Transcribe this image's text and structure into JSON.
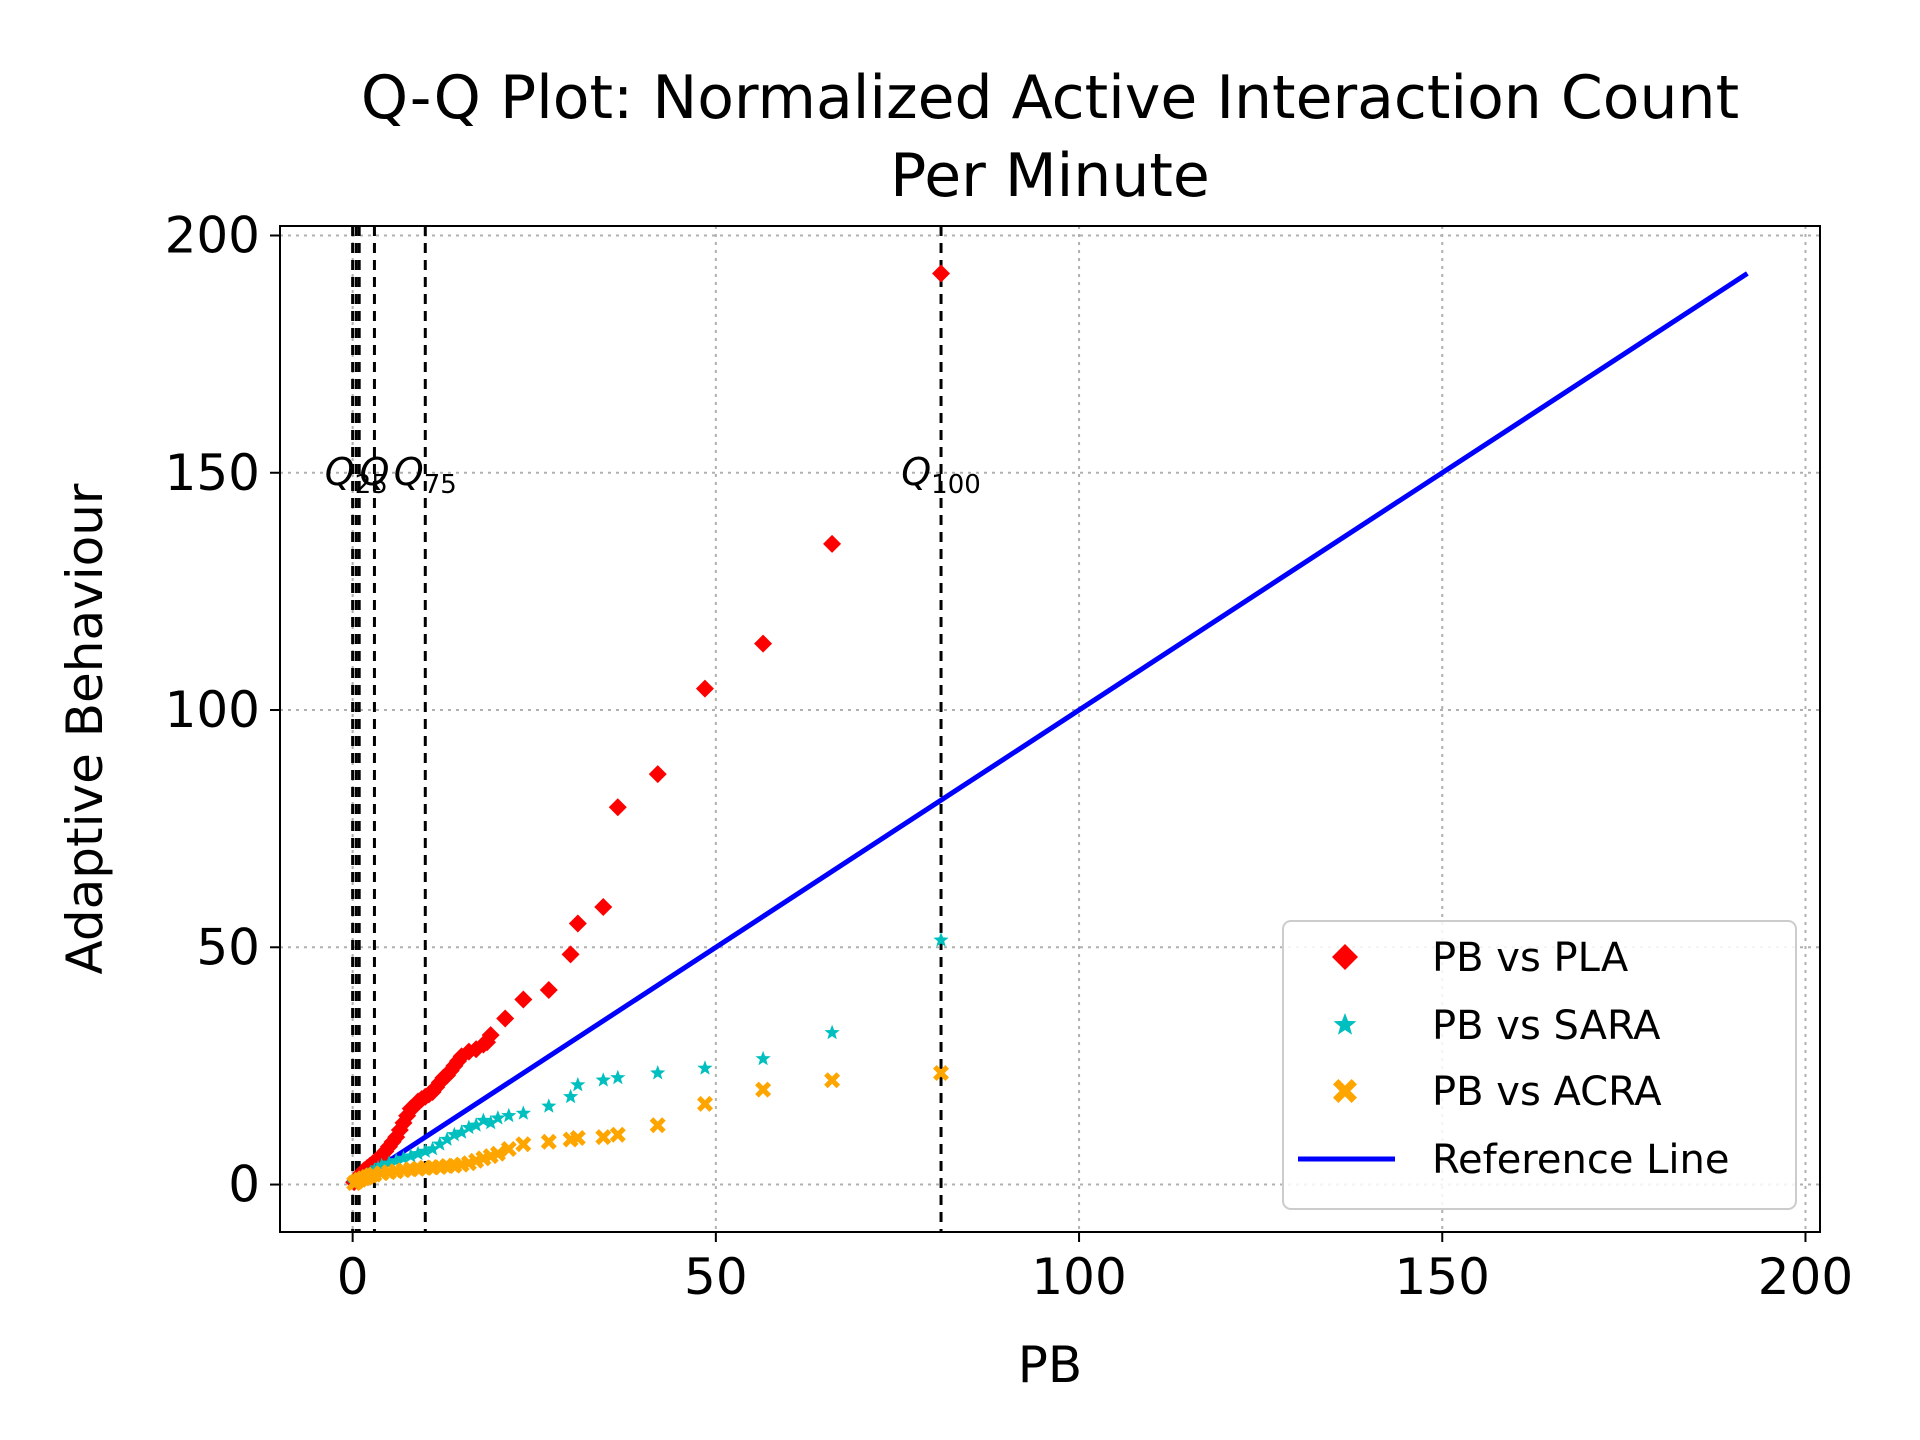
{
  "chart_data": {
    "type": "scatter",
    "title_line1": "Q-Q Plot: Normalized Active Interaction Count",
    "title_line2": "Per Minute",
    "xlabel": "PB",
    "ylabel": "Adaptive Behaviour",
    "xlim": [
      -10,
      202
    ],
    "ylim": [
      -10,
      202
    ],
    "xticks": [
      0,
      50,
      100,
      150,
      200
    ],
    "yticks": [
      0,
      50,
      100,
      150,
      200
    ],
    "xtick_labels": [
      "0",
      "50",
      "100",
      "150",
      "200"
    ],
    "ytick_labels": [
      "0",
      "50",
      "100",
      "150",
      "200"
    ],
    "grid": true,
    "legend_position": "lower-right",
    "quantile_lines": [
      {
        "name": "Q25",
        "x": 0.5,
        "label_base": "Q",
        "label_sub": "25",
        "show_label": true,
        "label_color": "#bbbbbb"
      },
      {
        "name": "Q0",
        "x": 0.0,
        "show_label": false
      },
      {
        "name": "Q40",
        "x": 0.9,
        "show_label": false
      },
      {
        "name": "Q50",
        "x": 3.0,
        "label_base": "Q",
        "label_sub": "",
        "show_label": true,
        "label_color": "#000000"
      },
      {
        "name": "Q75",
        "x": 10.0,
        "label_base": "Q",
        "label_sub": "75",
        "show_label": true,
        "label_color": "#000000"
      },
      {
        "name": "Q100",
        "x": 81.0,
        "label_base": "Q",
        "label_sub": "100",
        "show_label": true,
        "label_color": "#000000"
      }
    ],
    "quantile_label_y": 150,
    "series": [
      {
        "name": "PB vs PLA",
        "marker": "diamond",
        "color": "#ff0000",
        "x": [
          0.2,
          0.5,
          0.8,
          1.0,
          1.3,
          1.6,
          2.0,
          2.4,
          2.8,
          3.2,
          3.6,
          4.0,
          4.5,
          5.0,
          5.5,
          6.0,
          6.5,
          7.0,
          7.5,
          8.0,
          8.5,
          9.0,
          9.5,
          10.0,
          10.5,
          11.0,
          11.5,
          12.0,
          12.5,
          13.0,
          13.5,
          14.0,
          14.5,
          15.0,
          16.0,
          17.0,
          18.0,
          18.5,
          19.0,
          21.0,
          23.5,
          27.0,
          30.0,
          31.0,
          34.5,
          36.5,
          42.0,
          48.5,
          56.5,
          66.0,
          81.0
        ],
        "y": [
          0.5,
          1.0,
          1.5,
          2.0,
          2.5,
          3.0,
          3.5,
          4.0,
          4.5,
          5.0,
          5.5,
          6.0,
          7.0,
          8.0,
          9.0,
          10.0,
          11.5,
          13.0,
          14.5,
          16.0,
          16.5,
          17.5,
          18.0,
          18.5,
          19.0,
          19.5,
          20.5,
          21.5,
          22.5,
          23.0,
          24.0,
          25.0,
          26.0,
          27.0,
          28.0,
          28.5,
          29.5,
          30.0,
          31.5,
          35.0,
          39.0,
          41.0,
          48.5,
          55.0,
          58.5,
          79.5,
          86.5,
          104.5,
          114.0,
          135.0,
          192.0
        ]
      },
      {
        "name": "PB vs SARA",
        "marker": "star",
        "color": "#00bfbf",
        "x": [
          0.2,
          0.5,
          1.0,
          1.5,
          2.0,
          2.5,
          3.0,
          3.5,
          4.0,
          5.0,
          6.0,
          7.0,
          8.0,
          9.0,
          10.0,
          11.0,
          12.0,
          13.0,
          14.0,
          15.0,
          16.0,
          17.0,
          18.0,
          19.0,
          20.0,
          21.5,
          23.5,
          27.0,
          30.0,
          31.0,
          34.5,
          36.5,
          42.0,
          48.5,
          56.5,
          66.0,
          81.0
        ],
        "y": [
          0.3,
          0.6,
          1.0,
          1.5,
          2.0,
          2.5,
          3.0,
          3.5,
          4.0,
          4.5,
          5.0,
          5.5,
          6.0,
          6.5,
          7.0,
          7.5,
          8.5,
          9.5,
          10.5,
          11.0,
          12.0,
          12.5,
          13.5,
          13.0,
          14.0,
          14.5,
          15.0,
          16.5,
          18.5,
          21.0,
          22.0,
          22.5,
          23.5,
          24.5,
          26.5,
          32.0,
          51.5
        ]
      },
      {
        "name": "PB vs ACRA",
        "marker": "x",
        "color": "#ffa500",
        "x": [
          0.2,
          0.5,
          1.0,
          1.5,
          2.0,
          2.5,
          3.0,
          4.0,
          5.0,
          6.0,
          7.0,
          8.0,
          9.0,
          10.0,
          11.0,
          12.0,
          13.0,
          14.0,
          15.0,
          16.0,
          17.0,
          18.0,
          19.0,
          20.0,
          21.5,
          23.5,
          27.0,
          30.0,
          31.0,
          34.5,
          36.5,
          42.0,
          48.5,
          56.5,
          66.0,
          81.0
        ],
        "y": [
          0.3,
          0.6,
          1.0,
          1.3,
          1.6,
          1.9,
          2.1,
          2.4,
          2.6,
          2.8,
          3.0,
          3.2,
          3.3,
          3.5,
          3.6,
          3.7,
          3.9,
          4.0,
          4.2,
          4.5,
          5.0,
          5.5,
          6.0,
          6.5,
          7.5,
          8.5,
          9.0,
          9.5,
          9.8,
          10.0,
          10.5,
          12.5,
          17.0,
          20.0,
          22.0,
          23.5
        ]
      }
    ],
    "reference_line": {
      "name": "Reference Line",
      "color": "#0000ff",
      "x": [
        0,
        192
      ],
      "y": [
        0,
        192
      ]
    }
  }
}
